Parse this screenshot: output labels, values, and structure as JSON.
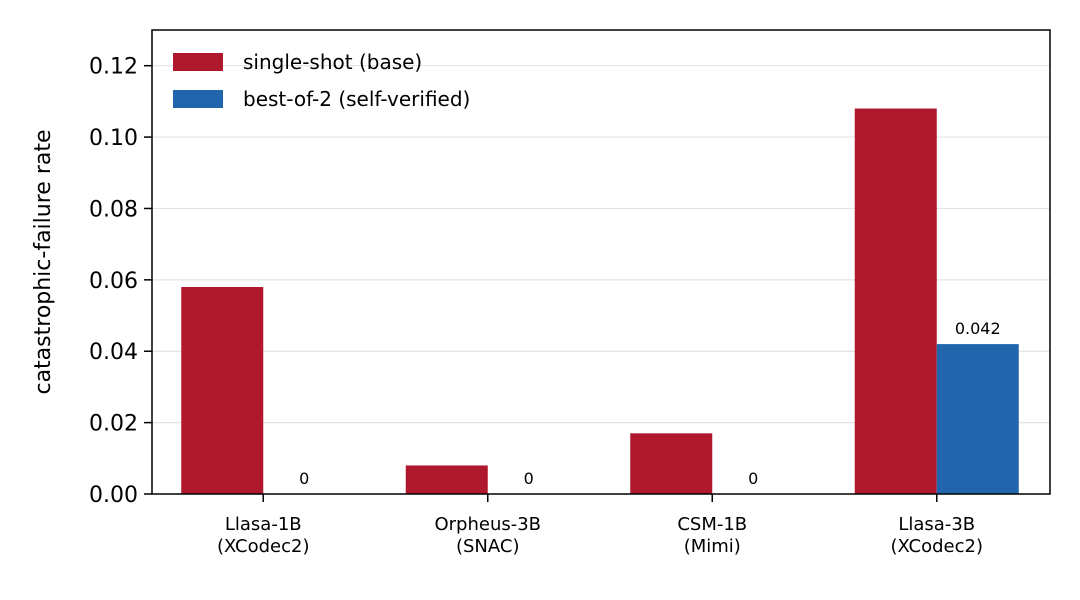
{
  "chart_data": {
    "type": "bar",
    "categories": [
      [
        "Llasa-1B",
        "(XCodec2)"
      ],
      [
        "Orpheus-3B",
        "(SNAC)"
      ],
      [
        "CSM-1B",
        "(Mimi)"
      ],
      [
        "Llasa-3B",
        "(XCodec2)"
      ]
    ],
    "series": [
      {
        "name": "single-shot (base)",
        "color": "#b0182d",
        "values": [
          0.058,
          0.008,
          0.017,
          0.108
        ],
        "labels": [
          "",
          "",
          "",
          ""
        ]
      },
      {
        "name": "best-of-2 (self-verified)",
        "color": "#2166ac",
        "values": [
          0,
          0,
          0,
          0.042
        ],
        "labels": [
          "0",
          "0",
          "0",
          "0.042"
        ]
      }
    ],
    "ylabel": "catastrophic-failure rate",
    "xlabel": "",
    "ylim": [
      0,
      0.13
    ],
    "yticks": [
      "0.00",
      "0.02",
      "0.04",
      "0.06",
      "0.08",
      "0.10",
      "0.12"
    ],
    "grid": "horizontal",
    "legend": "top-left"
  }
}
